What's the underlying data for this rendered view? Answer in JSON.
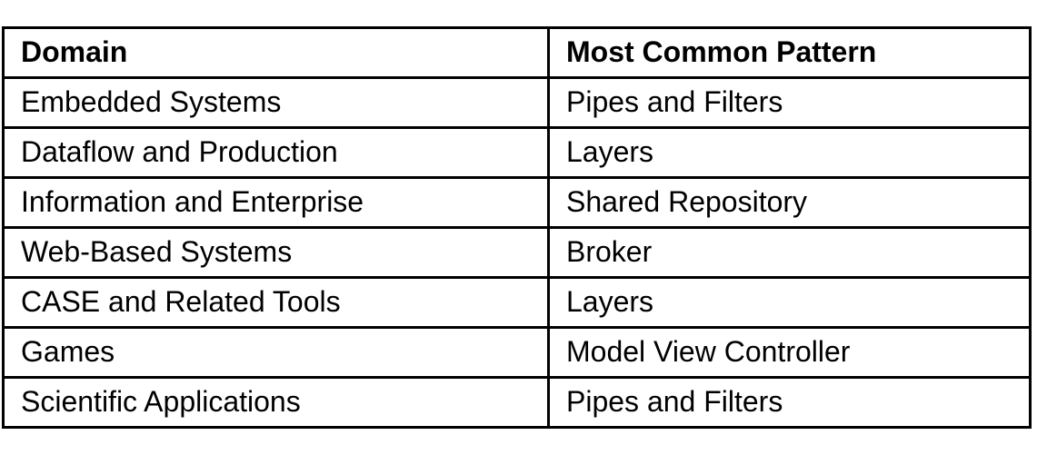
{
  "table": {
    "headers": [
      "Domain",
      "Most Common Pattern"
    ],
    "rows": [
      {
        "domain": "Embedded Systems",
        "pattern": "Pipes and Filters"
      },
      {
        "domain": "Dataflow and Production",
        "pattern": "Layers"
      },
      {
        "domain": "Information and Enterprise",
        "pattern": "Shared Repository"
      },
      {
        "domain": "Web-Based Systems",
        "pattern": "Broker"
      },
      {
        "domain": "CASE and Related Tools",
        "pattern": "Layers"
      },
      {
        "domain": "Games",
        "pattern": "Model View Controller"
      },
      {
        "domain": "Scientific Applications",
        "pattern": "Pipes and Filters"
      }
    ]
  },
  "colors": {
    "border": "#000000",
    "text": "#000000",
    "background": "#ffffff"
  }
}
